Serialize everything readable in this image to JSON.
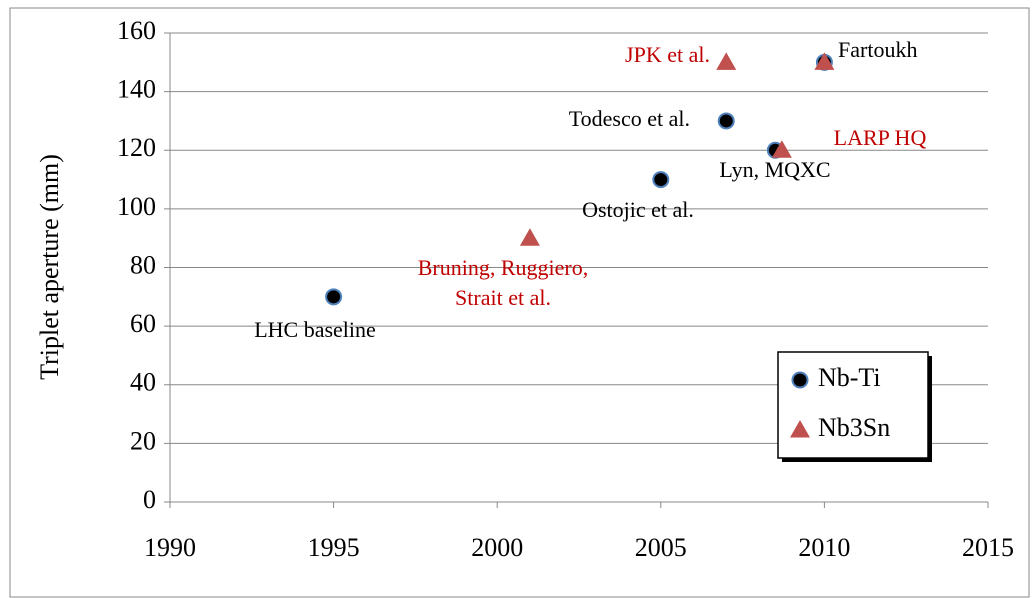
{
  "chart_data": {
    "type": "scatter",
    "y_label": "Triplet aperture (mm)",
    "series": [
      {
        "name": "Nb-Ti",
        "color": "#000000",
        "edge_color": "#4f81bd",
        "marker": "circle",
        "x": [
          1995,
          2005,
          2007,
          2008.5,
          2010
        ],
        "values": [
          70,
          110,
          130,
          120,
          150
        ]
      },
      {
        "name": "Nb3Sn",
        "color": "#c0504d",
        "marker": "triangle",
        "x": [
          2001,
          2007,
          2008.7,
          2010
        ],
        "values": [
          90,
          150,
          120,
          150
        ]
      }
    ],
    "annotations": [
      {
        "text": "LHC baseline",
        "color": "#000000"
      },
      {
        "text": "Ostojic et al.",
        "color": "#000000"
      },
      {
        "text": "Todesco et al.",
        "color": "#000000"
      },
      {
        "text": "Lyn, MQXC",
        "color": "#000000"
      },
      {
        "text": "Fartoukh",
        "color": "#000000"
      },
      {
        "text": "Bruning, Ruggiero,",
        "color": "#c00000"
      },
      {
        "text": "Strait et al.",
        "color": "#c00000"
      },
      {
        "text": "JPK et al.",
        "color": "#c00000"
      },
      {
        "text": "LARP HQ",
        "color": "#c00000"
      }
    ],
    "xlim": [
      1990,
      2015
    ],
    "xticks": [
      1990,
      1995,
      2000,
      2005,
      2010,
      2015
    ],
    "ylim": [
      0,
      160
    ],
    "yticks": [
      0,
      20,
      40,
      60,
      80,
      100,
      120,
      140,
      160
    ],
    "grid": true,
    "legend": "lower right"
  }
}
